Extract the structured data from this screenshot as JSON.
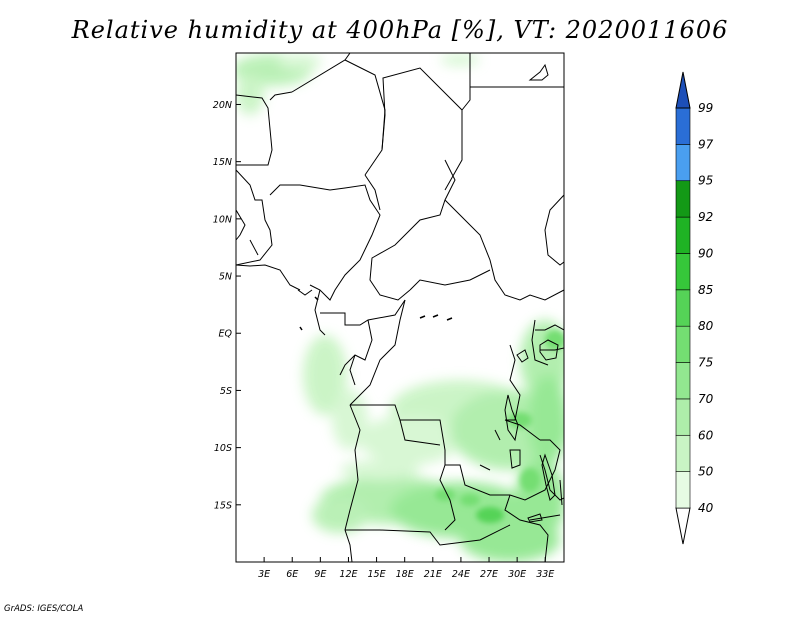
{
  "title": "Relative humidity at 400hPa [%], VT: 2020011606",
  "credit": "GrADS: IGES/COLA",
  "map": {
    "lon_labels": [
      "3E",
      "6E",
      "9E",
      "12E",
      "15E",
      "18E",
      "21E",
      "24E",
      "27E",
      "30E",
      "33E"
    ],
    "lat_labels": [
      "20N",
      "15N",
      "10N",
      "5N",
      "EQ",
      "5S",
      "10S",
      "15S"
    ],
    "lon_range": [
      0,
      35
    ],
    "lat_range": [
      -20,
      24.5
    ]
  },
  "colorbar": {
    "levels": [
      "40",
      "50",
      "60",
      "70",
      "75",
      "80",
      "85",
      "90",
      "92",
      "95",
      "97",
      "99"
    ],
    "colors": [
      "#ffffff",
      "#e6fbe3",
      "#c9f4c4",
      "#aeeeaa",
      "#92e790",
      "#74de72",
      "#55d357",
      "#36c73a",
      "#1fb324",
      "#139916",
      "#4a9ff0",
      "#2a6ed6",
      "#1d4fb8"
    ]
  }
}
